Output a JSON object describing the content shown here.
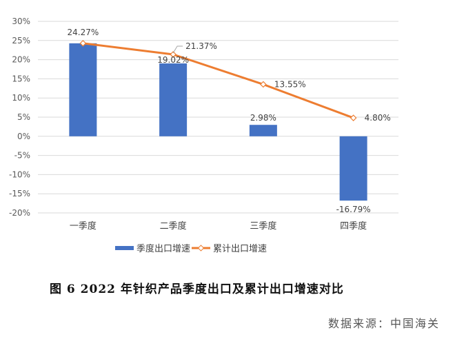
{
  "chart_data": {
    "type": "bar+line",
    "categories": [
      "一季度",
      "二季度",
      "三季度",
      "四季度"
    ],
    "series": [
      {
        "name": "季度出口增速",
        "type": "bar",
        "color": "#4472C4",
        "values": [
          24.27,
          19.02,
          2.98,
          -16.79
        ],
        "labels": [
          "24.27%",
          "19.02%",
          "2.98%",
          "-16.79%"
        ]
      },
      {
        "name": "累计出口增速",
        "type": "line",
        "color": "#ED7D31",
        "values": [
          24.27,
          21.37,
          13.55,
          4.8
        ],
        "labels": [
          "",
          "21.37%",
          "13.55%",
          "4.80%"
        ]
      }
    ],
    "ylim": [
      -20,
      30
    ],
    "yticks": [
      30,
      25,
      20,
      15,
      10,
      5,
      0,
      -5,
      -10,
      -15,
      -20
    ],
    "ytick_labels": [
      "30%",
      "25%",
      "20%",
      "15%",
      "10%",
      "5%",
      "0%",
      "-5%",
      "-10%",
      "-15%",
      "-20%"
    ],
    "grid": true,
    "legend": "bottom",
    "title": "图 6   2022 年针织产品季度出口及累计出口增速对比"
  },
  "source": "数据来源：中国海关"
}
